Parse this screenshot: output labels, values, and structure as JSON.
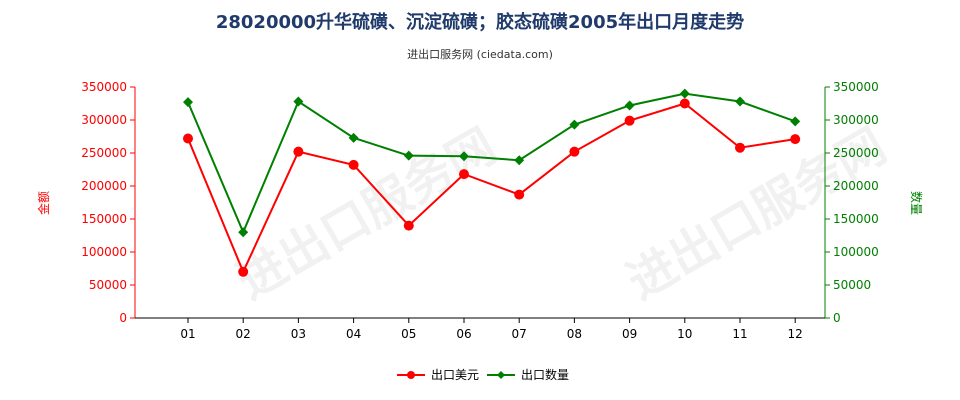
{
  "title": "28020000升华硫磺、沉淀硫磺；胶态硫磺2005年出口月度走势",
  "subtitle": "进出口服务网 (ciedata.com)",
  "watermark": "进出口服务网",
  "colors": {
    "series1": "#ff0000",
    "series2": "#008000",
    "title": "#1f3a6b"
  },
  "chart_data": {
    "type": "line",
    "title": "28020000升华硫磺、沉淀硫磺；胶态硫磺2005年出口月度走势",
    "categories": [
      "01",
      "02",
      "03",
      "04",
      "05",
      "06",
      "07",
      "08",
      "09",
      "10",
      "11",
      "12"
    ],
    "y_left": {
      "label": "金额",
      "ylim": [
        0,
        350000
      ],
      "ticks": [
        "0",
        "50000",
        "100000",
        "150000",
        "200000",
        "250000",
        "300000",
        "350000"
      ]
    },
    "y_right": {
      "label": "数量",
      "ylim": [
        0,
        350000
      ],
      "ticks": [
        "0",
        "50000",
        "100000",
        "150000",
        "200000",
        "250000",
        "300000",
        "350000"
      ]
    },
    "series": [
      {
        "name": "出口美元",
        "axis": "left",
        "color": "#ff0000",
        "marker": "circle",
        "values": [
          272000,
          70000,
          252000,
          232000,
          140000,
          218000,
          187000,
          252000,
          299000,
          325000,
          258000,
          271000
        ]
      },
      {
        "name": "出口数量",
        "axis": "right",
        "color": "#008000",
        "marker": "diamond",
        "values": [
          327000,
          130000,
          328000,
          273000,
          246000,
          245000,
          239000,
          293000,
          322000,
          340000,
          328000,
          298000
        ]
      }
    ],
    "legend": "bottom-center",
    "grid": false
  }
}
